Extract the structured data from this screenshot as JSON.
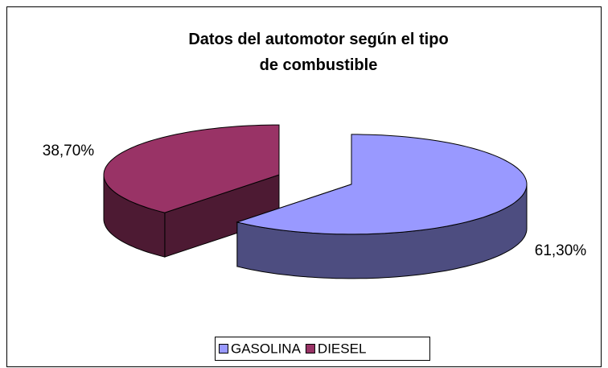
{
  "chart_data": {
    "type": "pie3d",
    "title": "Datos del automotor según el tipo de combustible",
    "categories": [
      "GASOLINA",
      "DIESEL"
    ],
    "values": [
      61.3,
      38.7
    ],
    "value_labels": [
      "61,30%",
      "38,70%"
    ],
    "colors": [
      "#9999ff",
      "#993366"
    ],
    "side_colors": [
      "#4d4d80",
      "#4d1a33"
    ],
    "legend": "bottom"
  }
}
